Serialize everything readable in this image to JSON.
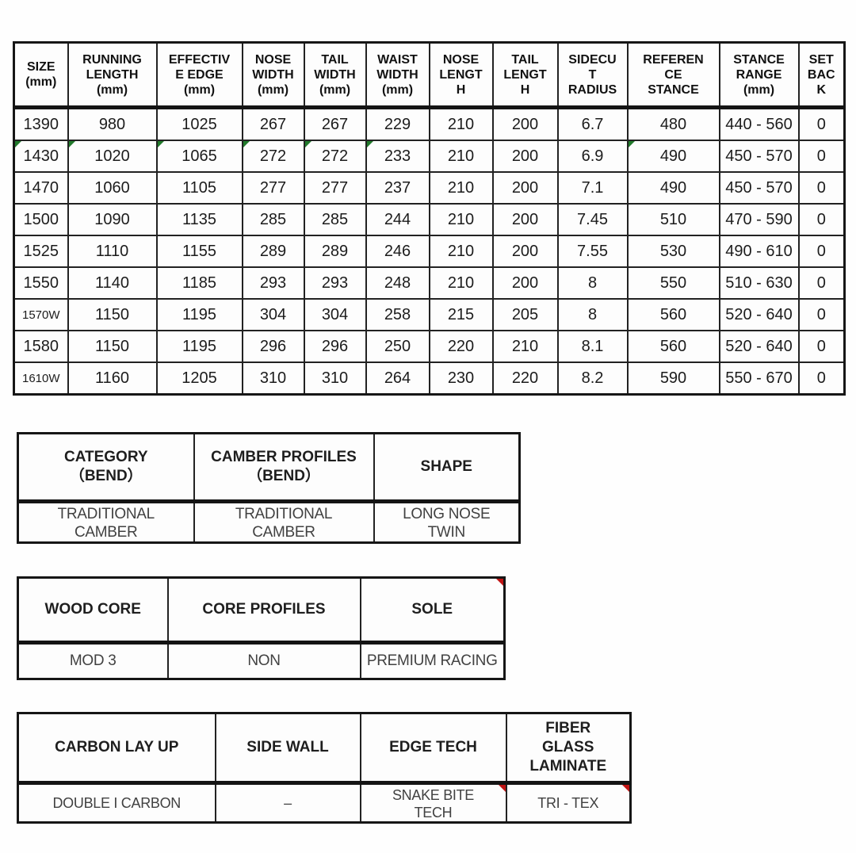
{
  "colors": {
    "border": "#161616",
    "header_text": "#111111",
    "cell_text": "#1c1c1c",
    "sub_value_text": "#414141",
    "green_marker": "#217a2b",
    "red_marker": "#c01414"
  },
  "spec_table": {
    "headers": [
      "SIZE\n(mm)",
      "RUNNING\nLENGTH\n(mm)",
      "EFFECTIV\nE EDGE\n(mm)",
      "NOSE\nWIDTH\n(mm)",
      "TAIL\nWIDTH\n(mm)",
      "WAIST\nWIDTH\n(mm)",
      "NOSE\nLENGT\nH",
      "TAIL\nLENGT\nH",
      "SIDECU\nT\nRADIUS",
      "REFEREN\nCE\nSTANCE",
      "STANCE\nRANGE\n(mm)",
      "SET\nBAC\nK"
    ],
    "rows": [
      [
        "1390",
        "980",
        "1025",
        "267",
        "267",
        "229",
        "210",
        "200",
        "6.7",
        "480",
        "440 - 560",
        "0"
      ],
      [
        "1430",
        "1020",
        "1065",
        "272",
        "272",
        "233",
        "210",
        "200",
        "6.9",
        "490",
        "450 - 570",
        "0"
      ],
      [
        "1470",
        "1060",
        "1105",
        "277",
        "277",
        "237",
        "210",
        "200",
        "7.1",
        "490",
        "450 - 570",
        "0"
      ],
      [
        "1500",
        "1090",
        "1135",
        "285",
        "285",
        "244",
        "210",
        "200",
        "7.45",
        "510",
        "470 - 590",
        "0"
      ],
      [
        "1525",
        "1110",
        "1155",
        "289",
        "289",
        "246",
        "210",
        "200",
        "7.55",
        "530",
        "490 - 610",
        "0"
      ],
      [
        "1550",
        "1140",
        "1185",
        "293",
        "293",
        "248",
        "210",
        "200",
        "8",
        "550",
        "510 - 630",
        "0"
      ],
      [
        "1570W",
        "1150",
        "1195",
        "304",
        "304",
        "258",
        "215",
        "205",
        "8",
        "560",
        "520 - 640",
        "0"
      ],
      [
        "1580",
        "1150",
        "1195",
        "296",
        "296",
        "250",
        "220",
        "210",
        "8.1",
        "560",
        "520 - 640",
        "0"
      ],
      [
        "1610W",
        "1160",
        "1205",
        "310",
        "310",
        "264",
        "230",
        "220",
        "8.2",
        "590",
        "550 - 670",
        "0"
      ]
    ],
    "green_marker_cells": [
      [
        1,
        0
      ],
      [
        1,
        1
      ],
      [
        1,
        2
      ],
      [
        1,
        3
      ],
      [
        1,
        4
      ],
      [
        1,
        5
      ],
      [
        1,
        9
      ]
    ],
    "small_text_cells": [
      [
        6,
        0
      ],
      [
        8,
        0
      ]
    ]
  },
  "bend_table": {
    "headers": [
      "CATEGORY\n（BEND）",
      "CAMBER PROFILES\n（BEND）",
      "SHAPE"
    ],
    "rows": [
      [
        "TRADITIONAL\nCAMBER",
        "TRADITIONAL\nCAMBER",
        "LONG NOSE\nTWIN"
      ]
    ]
  },
  "core_table": {
    "headers": [
      "WOOD CORE",
      "CORE PROFILES",
      "SOLE"
    ],
    "rows": [
      [
        "MOD 3",
        "NON",
        "PREMIUM RACING"
      ]
    ],
    "red_marker_header_cells": [
      2
    ]
  },
  "tech_table": {
    "headers": [
      "CARBON LAY UP",
      "SIDE WALL",
      "EDGE TECH",
      "FIBER\nGLASS\nLAMINATE"
    ],
    "rows": [
      [
        "DOUBLE I CARBON",
        "–",
        "SNAKE BITE\nTECH",
        "TRI - TEX"
      ]
    ],
    "red_marker_cells": [
      [
        0,
        2
      ],
      [
        0,
        3
      ]
    ]
  }
}
